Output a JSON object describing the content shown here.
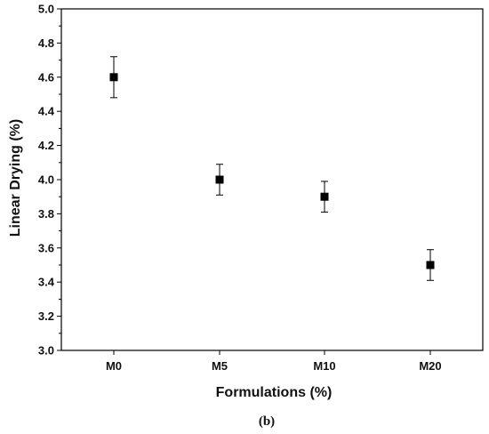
{
  "chart_data": {
    "type": "scatter",
    "categories": [
      "M0",
      "M5",
      "M10",
      "M20"
    ],
    "values": [
      4.6,
      4.0,
      3.9,
      3.5
    ],
    "error_low": [
      4.48,
      3.91,
      3.81,
      3.41
    ],
    "error_high": [
      4.72,
      4.09,
      3.99,
      3.59
    ],
    "xlabel": "Formulations (%)",
    "ylabel": "Linear Drying  (%)",
    "ylim": [
      3.0,
      5.0
    ],
    "y_ticks": [
      "3.0",
      "3.2",
      "3.4",
      "3.6",
      "3.8",
      "4.0",
      "4.2",
      "4.4",
      "4.6",
      "4.8",
      "5.0"
    ],
    "marker": "square",
    "marker_color": "#000000",
    "grid": false,
    "caption": "(b)"
  }
}
